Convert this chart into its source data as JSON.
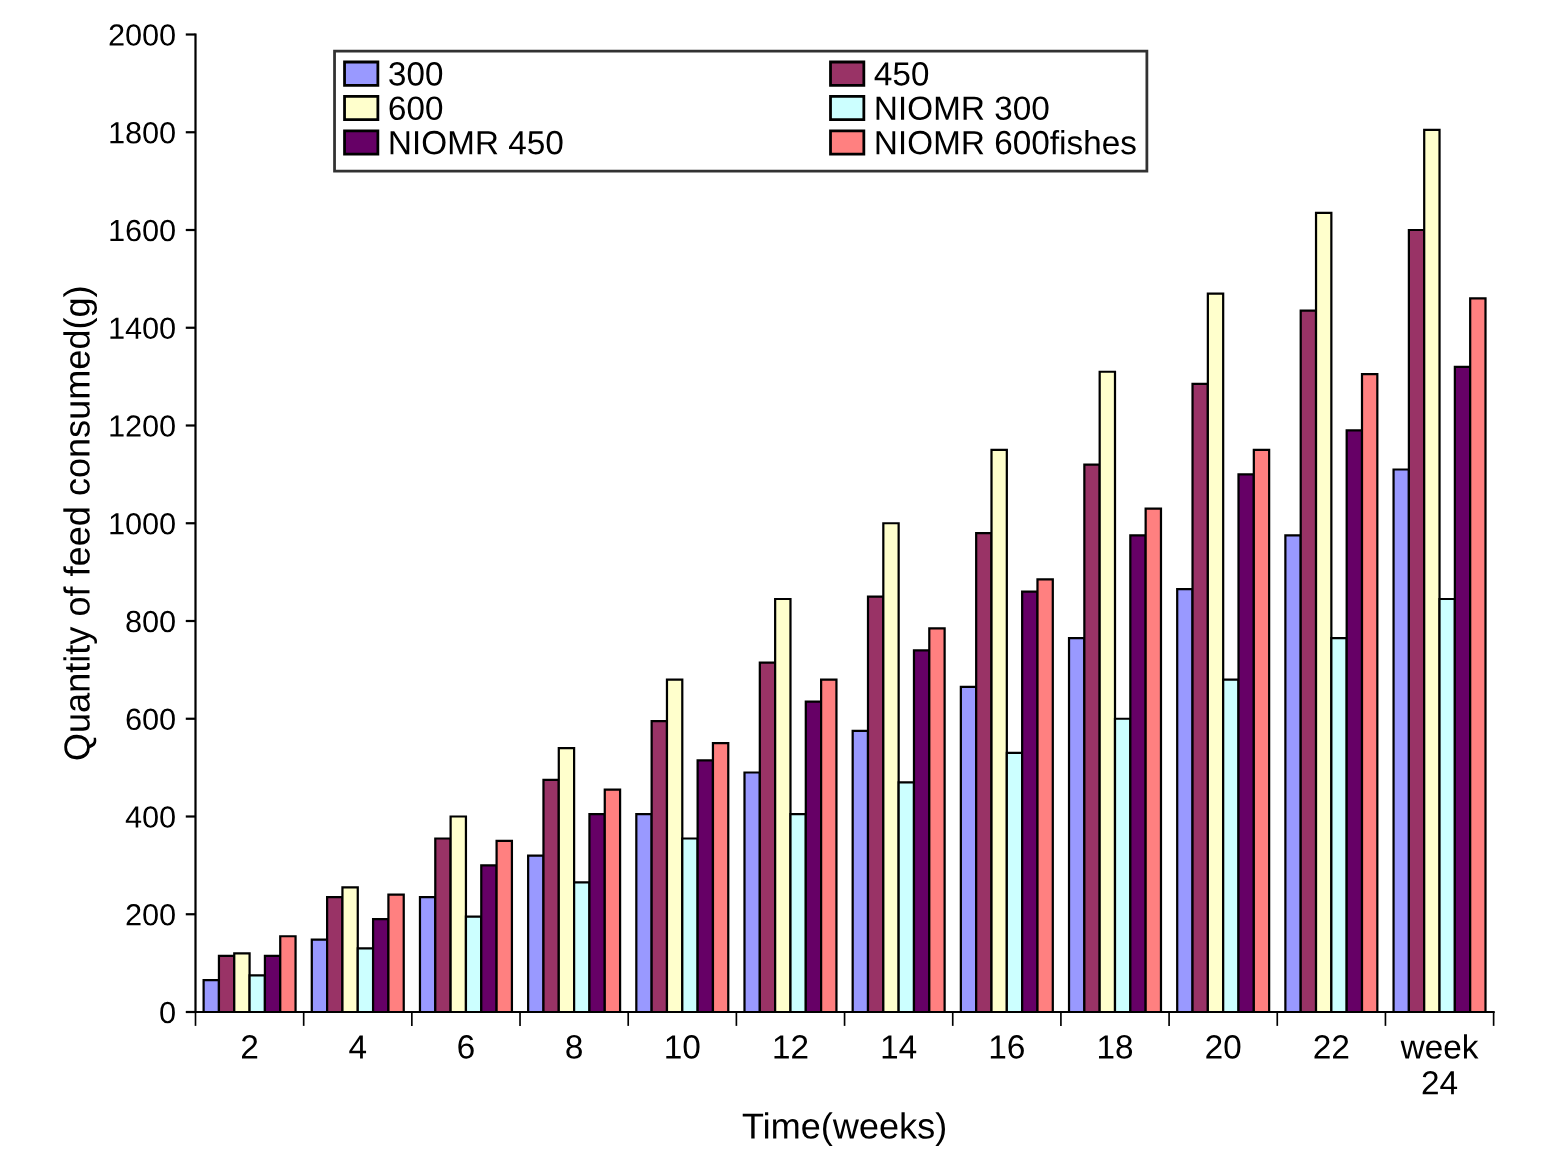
{
  "chart_data": {
    "type": "bar",
    "xlabel": "Time(weeks)",
    "ylabel": "Quantity of feed consumed(g)",
    "categories": [
      "2",
      "4",
      "6",
      "8",
      "10",
      "12",
      "14",
      "16",
      "18",
      "20",
      "22",
      "week 24"
    ],
    "series": [
      {
        "name": "300",
        "color": "#9999ff",
        "values": [
          65,
          148,
          235,
          320,
          405,
          490,
          575,
          665,
          765,
          865,
          975,
          1110
        ]
      },
      {
        "name": "450",
        "color": "#993366",
        "values": [
          115,
          235,
          355,
          475,
          595,
          715,
          850,
          980,
          1120,
          1285,
          1435,
          1600
        ]
      },
      {
        "name": "600",
        "color": "#ffffcc",
        "values": [
          120,
          255,
          400,
          540,
          680,
          845,
          1000,
          1150,
          1310,
          1470,
          1635,
          1805
        ]
      },
      {
        "name": "NIOMR 300",
        "color": "#ccffff",
        "values": [
          75,
          130,
          195,
          265,
          355,
          405,
          470,
          530,
          600,
          680,
          765,
          845
        ]
      },
      {
        "name": "NIOMR 450",
        "color": "#660066",
        "values": [
          115,
          190,
          300,
          405,
          515,
          635,
          740,
          860,
          975,
          1100,
          1190,
          1320
        ]
      },
      {
        "name": "NIOMR 600fishes",
        "color": "#ff8080",
        "values": [
          155,
          240,
          350,
          455,
          550,
          680,
          785,
          885,
          1030,
          1150,
          1305,
          1460
        ]
      }
    ],
    "ylim": [
      0,
      2000
    ],
    "yticks": [
      0,
      200,
      400,
      600,
      800,
      1000,
      1200,
      1400,
      1600,
      1800,
      2000
    ],
    "grid": false,
    "legend": "top"
  }
}
